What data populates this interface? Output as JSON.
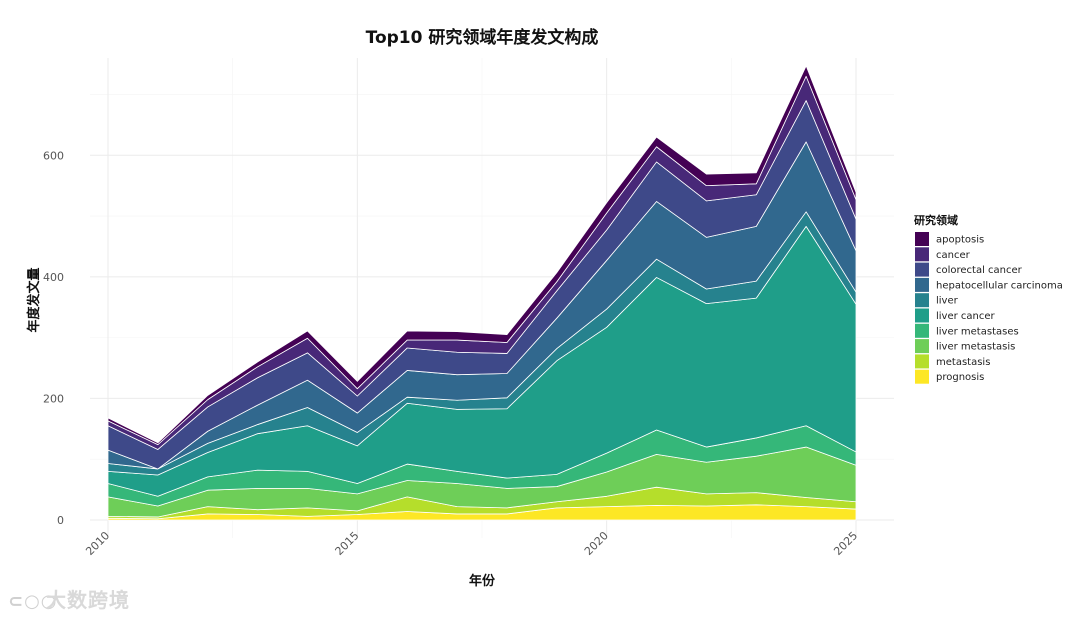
{
  "chart_data": {
    "type": "area",
    "stacked": true,
    "title": "Top10 研究领域年度发文构成",
    "xlabel": "年份",
    "ylabel": "年度发文量",
    "x": [
      2010,
      2011,
      2012,
      2013,
      2014,
      2015,
      2016,
      2017,
      2018,
      2019,
      2020,
      2021,
      2022,
      2023,
      2024,
      2025
    ],
    "xticks": [
      2010,
      2015,
      2020,
      2025
    ],
    "yticks": [
      0,
      200,
      400,
      600
    ],
    "xlim": [
      2010,
      2025
    ],
    "ylim": [
      0,
      760
    ],
    "grid": true,
    "legend": {
      "title": "研究领域",
      "position": "right"
    },
    "series": [
      {
        "name": "prognosis",
        "color": "#fde725",
        "values": [
          3,
          2,
          10,
          9,
          6,
          9,
          14,
          10,
          10,
          20,
          22,
          24,
          23,
          25,
          22,
          18
        ]
      },
      {
        "name": "metastasis",
        "color": "#b5de2b",
        "values": [
          3,
          3,
          12,
          8,
          14,
          6,
          24,
          12,
          10,
          10,
          17,
          30,
          20,
          20,
          15,
          12
        ]
      },
      {
        "name": "liver metastasis",
        "color": "#6ece58",
        "values": [
          32,
          18,
          27,
          35,
          32,
          28,
          27,
          38,
          32,
          25,
          40,
          54,
          52,
          60,
          83,
          60
        ]
      },
      {
        "name": "liver metastases",
        "color": "#35b779",
        "values": [
          22,
          16,
          22,
          30,
          28,
          17,
          27,
          20,
          17,
          20,
          31,
          40,
          25,
          30,
          35,
          22
        ]
      },
      {
        "name": "liver cancer",
        "color": "#1f9e89",
        "values": [
          20,
          35,
          40,
          60,
          75,
          62,
          100,
          102,
          114,
          187,
          207,
          251,
          236,
          230,
          328,
          243
        ]
      },
      {
        "name": "liver",
        "color": "#26828e",
        "values": [
          13,
          10,
          15,
          15,
          30,
          22,
          10,
          15,
          18,
          20,
          30,
          30,
          24,
          28,
          24,
          20
        ]
      },
      {
        "name": "hepatocellular carcinoma",
        "color": "#31688e",
        "values": [
          22,
          0,
          20,
          32,
          45,
          32,
          44,
          42,
          40,
          50,
          80,
          95,
          85,
          90,
          115,
          68
        ]
      },
      {
        "name": "colorectal cancer",
        "color": "#3e4989",
        "values": [
          40,
          32,
          40,
          45,
          45,
          28,
          37,
          37,
          33,
          45,
          50,
          65,
          60,
          52,
          68,
          52
        ]
      },
      {
        "name": "cancer",
        "color": "#482878",
        "values": [
          8,
          8,
          12,
          18,
          24,
          12,
          13,
          20,
          18,
          15,
          28,
          25,
          25,
          18,
          40,
          32
        ]
      },
      {
        "name": "apoptosis",
        "color": "#440154",
        "values": [
          5,
          3,
          7,
          8,
          12,
          12,
          15,
          14,
          13,
          15,
          17,
          16,
          19,
          18,
          17,
          12
        ]
      }
    ]
  },
  "watermark": {
    "text": "大数跨境",
    "logo": "logo-icon"
  }
}
